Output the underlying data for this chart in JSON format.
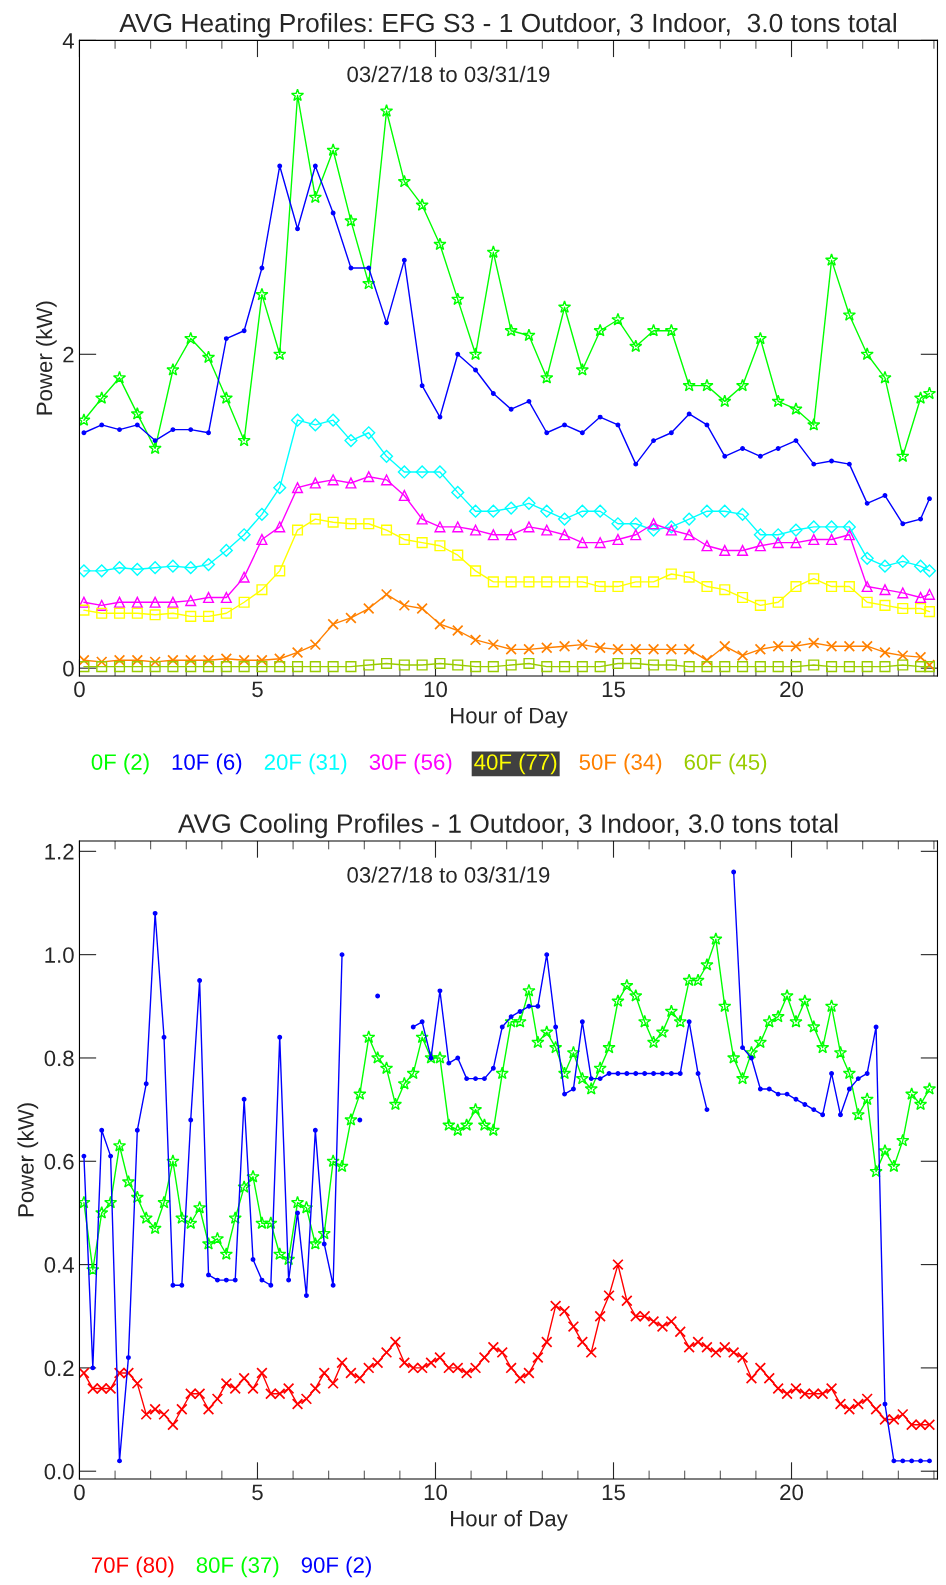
{
  "chart_data": [
    {
      "type": "line",
      "title": "AVG Heating Profiles: EFG S3 - 1 Outdoor, 3 Indoor,  3.0 tons total",
      "xlabel": "Hour of Day",
      "ylabel": "Power (kW)",
      "annotations": [
        "03/27/18 to 03/31/19"
      ],
      "x": [
        0.125,
        0.625,
        1.125,
        1.625,
        2.125,
        2.625,
        3.125,
        3.625,
        4.125,
        4.625,
        5.125,
        5.625,
        6.125,
        6.625,
        7.125,
        7.625,
        8.125,
        8.625,
        9.125,
        9.625,
        10.125,
        10.625,
        11.125,
        11.625,
        12.125,
        12.625,
        13.125,
        13.625,
        14.125,
        14.625,
        15.125,
        15.625,
        16.125,
        16.625,
        17.125,
        17.625,
        18.125,
        18.625,
        19.125,
        19.625,
        20.125,
        20.625,
        21.125,
        21.625,
        22.125,
        22.625,
        23.125,
        23.625,
        23.875
      ],
      "xlim": [
        0,
        24.1
      ],
      "xticks": [
        0,
        5,
        10,
        15,
        20
      ],
      "ylim": [
        -0.05,
        4
      ],
      "yticks": [
        0,
        2,
        4
      ],
      "grid": false,
      "legend": "bottom",
      "series": [
        {
          "name": "0F (2)",
          "color": "#00ff00",
          "marker": "star",
          "values": [
            1.58,
            1.72,
            1.85,
            1.62,
            1.4,
            1.9,
            2.1,
            1.98,
            1.72,
            1.45,
            2.38,
            2.0,
            3.65,
            3.0,
            3.3,
            2.85,
            2.45,
            3.55,
            3.1,
            2.95,
            2.7,
            2.35,
            2.0,
            2.65,
            2.15,
            2.12,
            1.85,
            2.3,
            1.9,
            2.15,
            2.22,
            2.05,
            2.15,
            2.15,
            1.8,
            1.8,
            1.7,
            1.8,
            2.1,
            1.7,
            1.65,
            1.55,
            2.6,
            2.25,
            2.0,
            1.85,
            1.35,
            1.72,
            1.75
          ]
        },
        {
          "name": "10F (6)",
          "color": "#0000ff",
          "marker": "circle",
          "values": [
            1.5,
            1.55,
            1.52,
            1.55,
            1.45,
            1.52,
            1.52,
            1.5,
            2.1,
            2.15,
            2.55,
            3.2,
            2.8,
            3.2,
            2.9,
            2.55,
            2.55,
            2.2,
            2.6,
            1.8,
            1.6,
            2.0,
            1.9,
            1.75,
            1.65,
            1.7,
            1.5,
            1.55,
            1.5,
            1.6,
            1.55,
            1.3,
            1.45,
            1.5,
            1.62,
            1.55,
            1.35,
            1.4,
            1.35,
            1.4,
            1.45,
            1.3,
            1.32,
            1.3,
            1.05,
            1.1,
            0.92,
            0.95,
            1.08
          ]
        },
        {
          "name": "20F (31)",
          "color": "#00ffff",
          "marker": "diamond",
          "values": [
            0.62,
            0.62,
            0.64,
            0.63,
            0.64,
            0.65,
            0.64,
            0.66,
            0.75,
            0.85,
            0.98,
            1.15,
            1.58,
            1.55,
            1.58,
            1.45,
            1.5,
            1.35,
            1.25,
            1.25,
            1.25,
            1.12,
            1.0,
            1.0,
            1.02,
            1.05,
            1.0,
            0.95,
            1.0,
            1.0,
            0.92,
            0.92,
            0.88,
            0.9,
            0.95,
            1.0,
            1.0,
            0.98,
            0.85,
            0.85,
            0.88,
            0.9,
            0.9,
            0.9,
            0.7,
            0.65,
            0.68,
            0.65,
            0.62
          ]
        },
        {
          "name": "30F (56)",
          "color": "#ff00ff",
          "marker": "triangle",
          "values": [
            0.42,
            0.4,
            0.42,
            0.42,
            0.42,
            0.42,
            0.43,
            0.45,
            0.45,
            0.58,
            0.82,
            0.9,
            1.15,
            1.18,
            1.2,
            1.18,
            1.22,
            1.2,
            1.1,
            0.95,
            0.9,
            0.9,
            0.88,
            0.85,
            0.85,
            0.9,
            0.88,
            0.85,
            0.8,
            0.8,
            0.82,
            0.85,
            0.92,
            0.88,
            0.85,
            0.78,
            0.75,
            0.75,
            0.78,
            0.8,
            0.8,
            0.82,
            0.82,
            0.85,
            0.52,
            0.5,
            0.48,
            0.45,
            0.47
          ]
        },
        {
          "name": "40F (77)",
          "color": "#ffff00",
          "marker": "square",
          "values": [
            0.37,
            0.35,
            0.35,
            0.35,
            0.34,
            0.35,
            0.33,
            0.33,
            0.35,
            0.42,
            0.5,
            0.62,
            0.88,
            0.95,
            0.93,
            0.92,
            0.92,
            0.88,
            0.82,
            0.8,
            0.78,
            0.72,
            0.62,
            0.55,
            0.55,
            0.55,
            0.55,
            0.55,
            0.55,
            0.52,
            0.52,
            0.55,
            0.55,
            0.6,
            0.58,
            0.52,
            0.5,
            0.45,
            0.4,
            0.42,
            0.52,
            0.57,
            0.52,
            0.52,
            0.42,
            0.4,
            0.38,
            0.38,
            0.36
          ]
        },
        {
          "name": "50F (34)",
          "color": "#ff8000",
          "marker": "cross",
          "values": [
            0.05,
            0.04,
            0.05,
            0.05,
            0.04,
            0.05,
            0.05,
            0.05,
            0.06,
            0.05,
            0.05,
            0.06,
            0.1,
            0.15,
            0.28,
            0.32,
            0.38,
            0.47,
            0.4,
            0.38,
            0.28,
            0.24,
            0.18,
            0.15,
            0.12,
            0.12,
            0.13,
            0.14,
            0.15,
            0.13,
            0.12,
            0.12,
            0.12,
            0.12,
            0.12,
            0.05,
            0.14,
            0.08,
            0.12,
            0.14,
            0.14,
            0.16,
            0.14,
            0.14,
            0.14,
            0.1,
            0.08,
            0.07,
            0.02
          ]
        },
        {
          "name": "60F (45)",
          "color": "#99cc00",
          "marker": "square",
          "values": [
            0.01,
            0.01,
            0.01,
            0.01,
            0.01,
            0.01,
            0.01,
            0.01,
            0.01,
            0.01,
            0.01,
            0.01,
            0.01,
            0.01,
            0.01,
            0.01,
            0.02,
            0.03,
            0.02,
            0.02,
            0.03,
            0.02,
            0.01,
            0.01,
            0.02,
            0.03,
            0.01,
            0.01,
            0.01,
            0.01,
            0.03,
            0.03,
            0.02,
            0.02,
            0.01,
            0.01,
            0.01,
            0.01,
            0.01,
            0.01,
            0.01,
            0.02,
            0.01,
            0.01,
            0.01,
            0.01,
            0.02,
            0.01,
            0.01
          ]
        }
      ]
    },
    {
      "type": "line",
      "title": "AVG Cooling Profiles - 1 Outdoor, 3 Indoor, 3.0 tons total",
      "xlabel": "Hour of Day",
      "ylabel": "Power (kW)",
      "annotations": [
        "03/27/18 to 03/31/19"
      ],
      "x": [
        0.125,
        0.375,
        0.625,
        0.875,
        1.125,
        1.375,
        1.625,
        1.875,
        2.125,
        2.375,
        2.625,
        2.875,
        3.125,
        3.375,
        3.625,
        3.875,
        4.125,
        4.375,
        4.625,
        4.875,
        5.125,
        5.375,
        5.625,
        5.875,
        6.125,
        6.375,
        6.625,
        6.875,
        7.125,
        7.375,
        7.625,
        7.875,
        8.125,
        8.375,
        8.625,
        8.875,
        9.125,
        9.375,
        9.625,
        9.875,
        10.125,
        10.375,
        10.625,
        10.875,
        11.125,
        11.375,
        11.625,
        11.875,
        12.125,
        12.375,
        12.625,
        12.875,
        13.125,
        13.375,
        13.625,
        13.875,
        14.125,
        14.375,
        14.625,
        14.875,
        15.125,
        15.375,
        15.625,
        15.875,
        16.125,
        16.375,
        16.625,
        16.875,
        17.125,
        17.375,
        17.625,
        17.875,
        18.125,
        18.375,
        18.625,
        18.875,
        19.125,
        19.375,
        19.625,
        19.875,
        20.125,
        20.375,
        20.625,
        20.875,
        21.125,
        21.375,
        21.625,
        21.875,
        22.125,
        22.375,
        22.625,
        22.875,
        23.125,
        23.375,
        23.625,
        23.875
      ],
      "xlim": [
        0,
        24.1
      ],
      "xticks": [
        0,
        5,
        10,
        15,
        20
      ],
      "ylim": [
        -0.015,
        1.22
      ],
      "yticks": [
        {
          "value": 0,
          "label": "0.0"
        },
        {
          "value": 0.2,
          "label": "0.2"
        },
        {
          "value": 0.4,
          "label": "0.4"
        },
        {
          "value": 0.6,
          "label": "0.6"
        },
        {
          "value": 0.8,
          "label": "0.8"
        },
        {
          "value": 1.0,
          "label": "1.0"
        },
        {
          "value": 1.2,
          "label": "1.2"
        }
      ],
      "grid": false,
      "legend": "bottom",
      "series": [
        {
          "name": "70F (80)",
          "color": "#ff0000",
          "marker": "cross",
          "values": [
            0.19,
            0.16,
            0.16,
            0.16,
            0.19,
            0.19,
            0.17,
            0.11,
            0.12,
            0.11,
            0.09,
            0.12,
            0.15,
            0.15,
            0.12,
            0.14,
            0.17,
            0.16,
            0.18,
            0.16,
            0.19,
            0.15,
            0.15,
            0.16,
            0.13,
            0.14,
            0.16,
            0.19,
            0.17,
            0.21,
            0.19,
            0.18,
            0.2,
            0.21,
            0.23,
            0.25,
            0.21,
            0.2,
            0.2,
            0.21,
            0.22,
            0.2,
            0.2,
            0.19,
            0.2,
            0.22,
            0.24,
            0.23,
            0.2,
            0.18,
            0.19,
            0.22,
            0.25,
            0.32,
            0.31,
            0.28,
            0.25,
            0.23,
            0.3,
            0.34,
            0.4,
            0.33,
            0.3,
            0.3,
            0.29,
            0.28,
            0.29,
            0.27,
            0.24,
            0.25,
            0.24,
            0.23,
            0.24,
            0.23,
            0.22,
            0.18,
            0.2,
            0.18,
            0.16,
            0.15,
            0.16,
            0.15,
            0.15,
            0.15,
            0.16,
            0.13,
            0.12,
            0.13,
            0.14,
            0.12,
            0.1,
            0.1,
            0.11,
            0.09,
            0.09,
            0.09
          ]
        },
        {
          "name": "80F (37)",
          "color": "#00ff00",
          "marker": "star",
          "values": [
            0.52,
            0.39,
            0.5,
            0.52,
            0.63,
            0.56,
            0.53,
            0.49,
            0.47,
            0.52,
            0.6,
            0.49,
            0.48,
            0.51,
            0.44,
            0.45,
            0.42,
            0.49,
            0.55,
            0.57,
            0.48,
            0.48,
            0.42,
            0.41,
            0.52,
            0.51,
            0.44,
            0.46,
            0.6,
            0.59,
            0.68,
            0.73,
            0.84,
            0.8,
            0.78,
            0.71,
            0.75,
            0.77,
            0.84,
            0.8,
            0.8,
            0.67,
            0.66,
            0.67,
            0.7,
            0.67,
            0.66,
            0.77,
            0.87,
            0.87,
            0.93,
            0.83,
            0.85,
            0.82,
            0.77,
            0.81,
            0.76,
            0.74,
            0.78,
            0.82,
            0.91,
            0.94,
            0.92,
            0.87,
            0.83,
            0.85,
            0.89,
            0.87,
            0.95,
            0.95,
            0.98,
            1.03,
            0.9,
            0.8,
            0.76,
            0.81,
            0.83,
            0.87,
            0.88,
            0.92,
            0.87,
            0.91,
            0.86,
            0.82,
            0.9,
            0.81,
            0.77,
            0.69,
            0.72,
            0.58,
            0.62,
            0.59,
            0.64,
            0.73,
            0.71,
            0.74
          ]
        },
        {
          "name": "90F (2)",
          "color": "#0000ff",
          "marker": "circle",
          "values": [
            0.61,
            0.2,
            0.66,
            0.61,
            0.02,
            0.22,
            0.66,
            0.75,
            1.08,
            0.84,
            0.36,
            0.36,
            0.68,
            0.95,
            0.38,
            0.37,
            0.37,
            0.37,
            0.72,
            0.41,
            0.37,
            0.36,
            0.84,
            0.37,
            0.5,
            0.34,
            0.66,
            0.44,
            0.36,
            1.0,
            null,
            0.68,
            null,
            0.92,
            null,
            null,
            null,
            0.86,
            0.87,
            0.8,
            0.93,
            0.79,
            0.8,
            0.76,
            0.76,
            0.76,
            0.78,
            0.86,
            0.88,
            0.89,
            0.9,
            0.9,
            1.0,
            0.86,
            0.73,
            0.74,
            0.87,
            0.76,
            0.76,
            0.77,
            0.77,
            0.77,
            0.77,
            0.77,
            0.77,
            0.77,
            0.77,
            0.77,
            0.87,
            0.77,
            0.7,
            null,
            null,
            1.16,
            0.82,
            0.8,
            0.74,
            0.74,
            0.73,
            0.73,
            0.72,
            0.71,
            0.7,
            0.69,
            0.77,
            0.69,
            0.74,
            0.76,
            0.77,
            0.86,
            0.13,
            0.02,
            0.02,
            0.02,
            0.02,
            0.02
          ]
        }
      ]
    }
  ]
}
